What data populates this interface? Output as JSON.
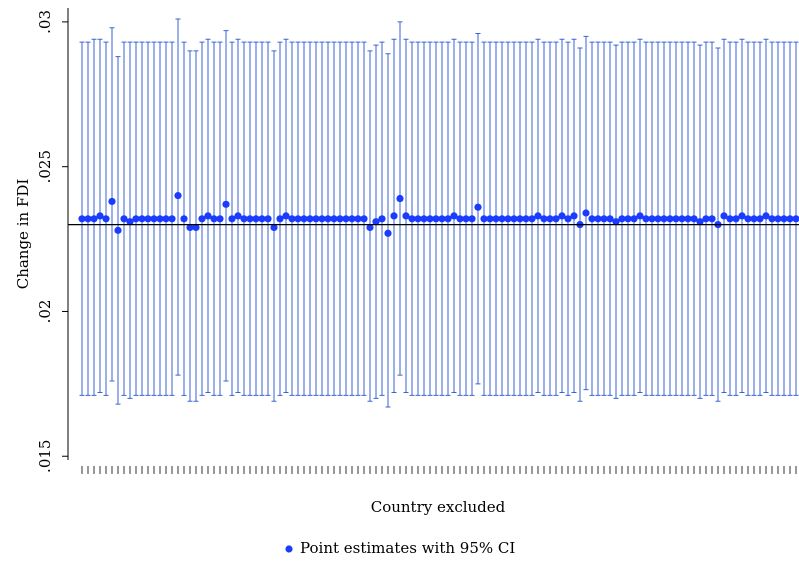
{
  "chart_data": {
    "type": "errorbar",
    "y_label": "Change in FDI",
    "x_label": "Country excluded",
    "ylim": [
      0.01487,
      0.03048
    ],
    "yticks": [
      {
        "value": 0.015,
        "label": ".015"
      },
      {
        "value": 0.02,
        "label": ".02"
      },
      {
        "value": 0.025,
        "label": ".025"
      },
      {
        "value": 0.03,
        "label": ".03"
      }
    ],
    "reference_line": 0.023,
    "categories": [
      null,
      null,
      null,
      null,
      null,
      null,
      null,
      null,
      null,
      null,
      null,
      null,
      null,
      null,
      null,
      null,
      null,
      null,
      null,
      null,
      null,
      null,
      null,
      null,
      null,
      null,
      null,
      null,
      null,
      null,
      null,
      null,
      null,
      null,
      null,
      null,
      null,
      null,
      null,
      null,
      null,
      null,
      null,
      null,
      null,
      null,
      null,
      null,
      null,
      null,
      null,
      null,
      null,
      null,
      null,
      null,
      null,
      null,
      null,
      null,
      null,
      null,
      null,
      null,
      null,
      null,
      null,
      null,
      null,
      null,
      null,
      null,
      null,
      null,
      null,
      null,
      null,
      null,
      null,
      null,
      null,
      null,
      null,
      null,
      null,
      null,
      null,
      null,
      null,
      null,
      null,
      null,
      null,
      null,
      null,
      null,
      null,
      null,
      null,
      null,
      null,
      null,
      null,
      null,
      null,
      null,
      null,
      null,
      null,
      null,
      null,
      null,
      null,
      null,
      null,
      null,
      null,
      null,
      null,
      null
    ],
    "series": [
      {
        "name": "Point estimates with 95% CI",
        "color": "#1b3cff",
        "bar_color": "#3a63d6",
        "values": [
          0.0232,
          0.0232,
          0.0232,
          0.0233,
          0.0232,
          0.0238,
          0.0228,
          0.0232,
          0.0231,
          0.0232,
          0.0232,
          0.0232,
          0.0232,
          0.0232,
          0.0232,
          0.0232,
          0.024,
          0.0232,
          0.0229,
          0.0229,
          0.0232,
          0.0233,
          0.0232,
          0.0232,
          0.0237,
          0.0232,
          0.0233,
          0.0232,
          0.0232,
          0.0232,
          0.0232,
          0.0232,
          0.0229,
          0.0232,
          0.0233,
          0.0232,
          0.0232,
          0.0232,
          0.0232,
          0.0232,
          0.0232,
          0.0232,
          0.0232,
          0.0232,
          0.0232,
          0.0232,
          0.0232,
          0.0232,
          0.0229,
          0.0231,
          0.0232,
          0.0227,
          0.0233,
          0.0239,
          0.0233,
          0.0232,
          0.0232,
          0.0232,
          0.0232,
          0.0232,
          0.0232,
          0.0232,
          0.0233,
          0.0232,
          0.0232,
          0.0232,
          0.0236,
          0.0232,
          0.0232,
          0.0232,
          0.0232,
          0.0232,
          0.0232,
          0.0232,
          0.0232,
          0.0232,
          0.0233,
          0.0232,
          0.0232,
          0.0232,
          0.0233,
          0.0232,
          0.0233,
          0.023,
          0.0234,
          0.0232,
          0.0232,
          0.0232,
          0.0232,
          0.0231,
          0.0232,
          0.0232,
          0.0232,
          0.0233,
          0.0232,
          0.0232,
          0.0232,
          0.0232,
          0.0232,
          0.0232,
          0.0232,
          0.0232,
          0.0232,
          0.0231,
          0.0232,
          0.0232,
          0.023,
          0.0233,
          0.0232,
          0.0232,
          0.0233,
          0.0232,
          0.0232,
          0.0232,
          0.0233,
          0.0232,
          0.0232,
          0.0232,
          0.0232,
          0.0232
        ],
        "ci_low": [
          0.0171,
          0.0171,
          0.0171,
          0.0172,
          0.0171,
          0.0176,
          0.0168,
          0.0171,
          0.017,
          0.0171,
          0.0171,
          0.0171,
          0.0171,
          0.0171,
          0.0171,
          0.0171,
          0.0178,
          0.0171,
          0.0169,
          0.0169,
          0.0171,
          0.0172,
          0.0171,
          0.0171,
          0.0176,
          0.0171,
          0.0172,
          0.0171,
          0.0171,
          0.0171,
          0.0171,
          0.0171,
          0.0169,
          0.0171,
          0.0172,
          0.0171,
          0.0171,
          0.0171,
          0.0171,
          0.0171,
          0.0171,
          0.0171,
          0.0171,
          0.0171,
          0.0171,
          0.0171,
          0.0171,
          0.0171,
          0.0169,
          0.017,
          0.0171,
          0.0167,
          0.0172,
          0.0178,
          0.0172,
          0.0171,
          0.0171,
          0.0171,
          0.0171,
          0.0171,
          0.0171,
          0.0171,
          0.0172,
          0.0171,
          0.0171,
          0.0171,
          0.0175,
          0.0171,
          0.0171,
          0.0171,
          0.0171,
          0.0171,
          0.0171,
          0.0171,
          0.0171,
          0.0171,
          0.0172,
          0.0171,
          0.0171,
          0.0171,
          0.0172,
          0.0171,
          0.0172,
          0.0169,
          0.0173,
          0.0171,
          0.0171,
          0.0171,
          0.0171,
          0.017,
          0.0171,
          0.0171,
          0.0171,
          0.0172,
          0.0171,
          0.0171,
          0.0171,
          0.0171,
          0.0171,
          0.0171,
          0.0171,
          0.0171,
          0.0171,
          0.017,
          0.0171,
          0.0171,
          0.0169,
          0.0172,
          0.0171,
          0.0171,
          0.0172,
          0.0171,
          0.0171,
          0.0171,
          0.0172,
          0.0171,
          0.0171,
          0.0171,
          0.0171,
          0.0171
        ],
        "ci_high": [
          0.0293,
          0.0293,
          0.0294,
          0.0294,
          0.0293,
          0.0298,
          0.0288,
          0.0293,
          0.0293,
          0.0293,
          0.0293,
          0.0293,
          0.0293,
          0.0293,
          0.0293,
          0.0293,
          0.0301,
          0.0293,
          0.029,
          0.029,
          0.0293,
          0.0294,
          0.0293,
          0.0293,
          0.0297,
          0.0293,
          0.0294,
          0.0293,
          0.0293,
          0.0293,
          0.0293,
          0.0293,
          0.029,
          0.0293,
          0.0294,
          0.0293,
          0.0293,
          0.0293,
          0.0293,
          0.0293,
          0.0293,
          0.0293,
          0.0293,
          0.0293,
          0.0293,
          0.0293,
          0.0293,
          0.0293,
          0.029,
          0.0292,
          0.0293,
          0.0289,
          0.0294,
          0.03,
          0.0294,
          0.0293,
          0.0293,
          0.0293,
          0.0293,
          0.0293,
          0.0293,
          0.0293,
          0.0294,
          0.0293,
          0.0293,
          0.0293,
          0.0296,
          0.0293,
          0.0293,
          0.0293,
          0.0293,
          0.0293,
          0.0293,
          0.0293,
          0.0293,
          0.0293,
          0.0294,
          0.0293,
          0.0293,
          0.0293,
          0.0294,
          0.0293,
          0.0294,
          0.0291,
          0.0295,
          0.0293,
          0.0293,
          0.0293,
          0.0293,
          0.0292,
          0.0293,
          0.0293,
          0.0293,
          0.0294,
          0.0293,
          0.0293,
          0.0293,
          0.0293,
          0.0293,
          0.0293,
          0.0293,
          0.0293,
          0.0293,
          0.0292,
          0.0293,
          0.0293,
          0.0291,
          0.0294,
          0.0293,
          0.0293,
          0.0294,
          0.0293,
          0.0293,
          0.0293,
          0.0294,
          0.0293,
          0.0293,
          0.0293,
          0.0293,
          0.0293
        ]
      }
    ]
  }
}
